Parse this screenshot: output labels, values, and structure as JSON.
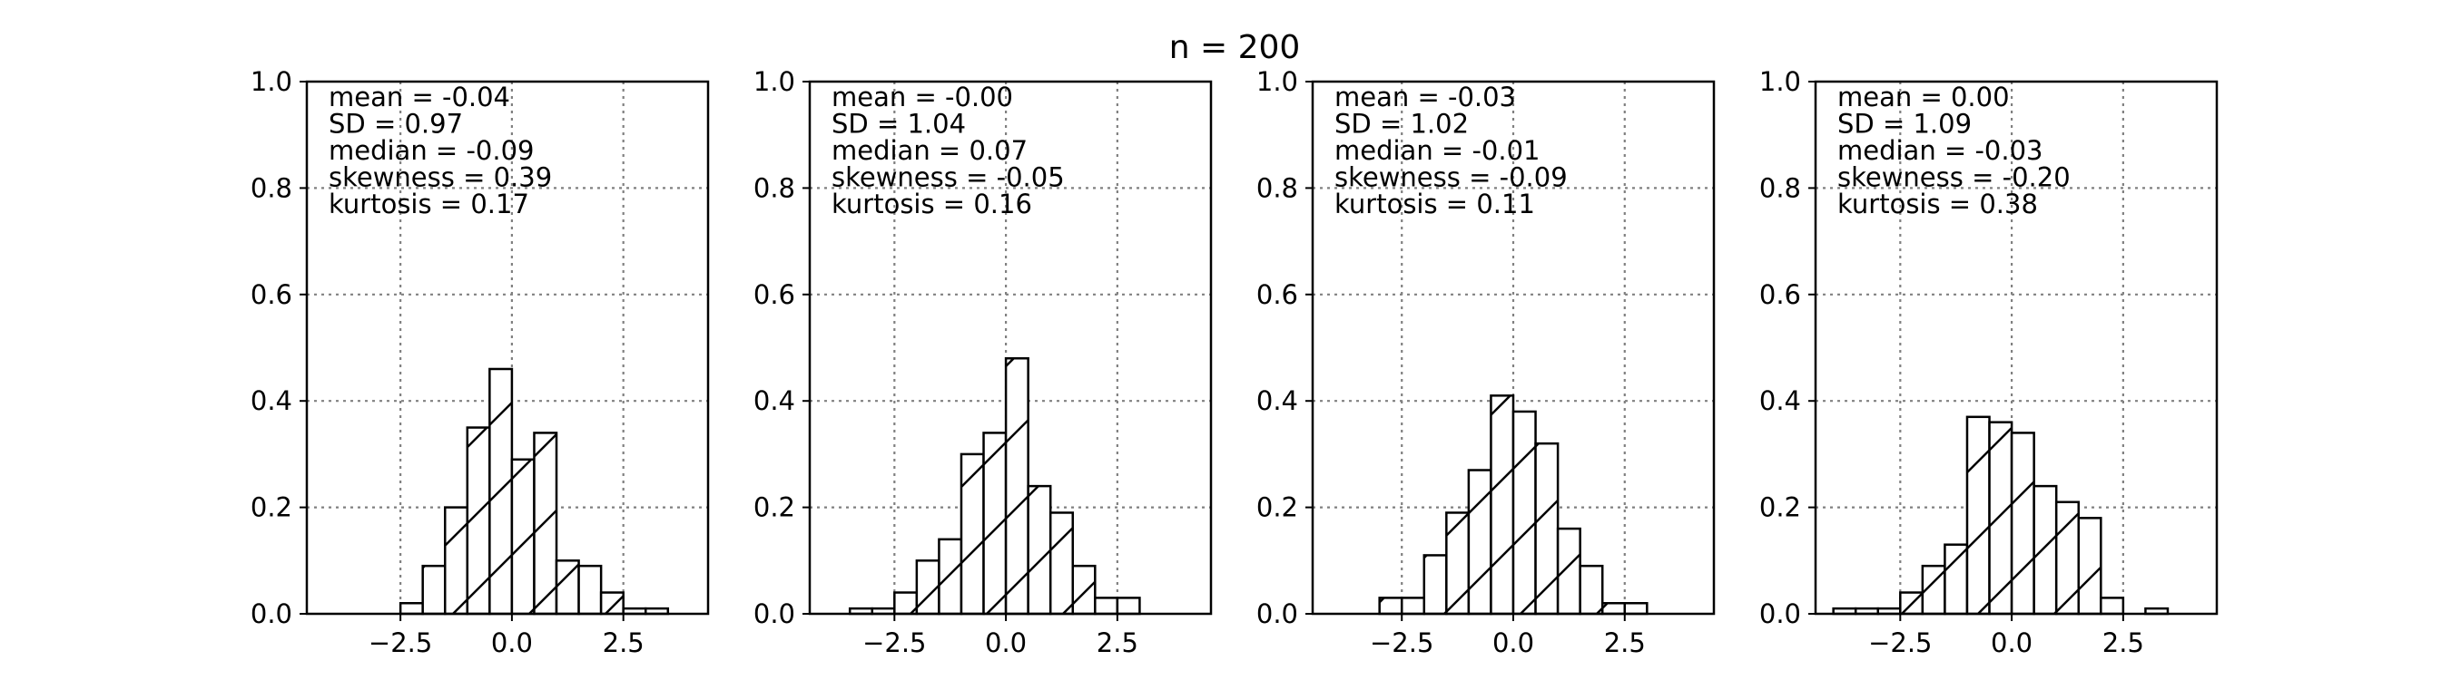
{
  "figure": {
    "suptitle": "n = 200"
  },
  "chart_data": [
    {
      "type": "bar",
      "title": "",
      "xlabel": "",
      "ylabel": "",
      "xlim": [
        -4.6,
        4.4
      ],
      "ylim": [
        0,
        1.0
      ],
      "grid": true,
      "hatch": "diagonal",
      "xticks": [
        -2.5,
        0.0,
        2.5
      ],
      "xtick_labels": [
        "−2.5",
        "0.0",
        "2.5"
      ],
      "yticks": [
        0.0,
        0.2,
        0.4,
        0.6,
        0.8,
        1.0
      ],
      "ytick_labels": [
        "0.0",
        "0.2",
        "0.4",
        "0.6",
        "0.8",
        "1.0"
      ],
      "bin_edges": [
        -2.5,
        -2.0,
        -1.5,
        -1.0,
        -0.5,
        0.0,
        0.5,
        1.0,
        1.5,
        2.0,
        2.5,
        3.0,
        3.5
      ],
      "values": [
        0.02,
        0.09,
        0.2,
        0.35,
        0.46,
        0.29,
        0.34,
        0.1,
        0.09,
        0.04,
        0.01,
        0.01
      ],
      "stats": [
        "mean = -0.04",
        "SD = 0.97",
        "median = -0.09",
        "skewness = 0.39",
        "kurtosis = 0.17"
      ]
    },
    {
      "type": "bar",
      "title": "",
      "xlabel": "",
      "ylabel": "",
      "xlim": [
        -4.4,
        4.6
      ],
      "ylim": [
        0,
        1.0
      ],
      "grid": true,
      "hatch": "diagonal",
      "xticks": [
        -2.5,
        0.0,
        2.5
      ],
      "xtick_labels": [
        "−2.5",
        "0.0",
        "2.5"
      ],
      "yticks": [
        0.0,
        0.2,
        0.4,
        0.6,
        0.8,
        1.0
      ],
      "ytick_labels": [
        "0.0",
        "0.2",
        "0.4",
        "0.6",
        "0.8",
        "1.0"
      ],
      "bin_edges": [
        -3.5,
        -3.0,
        -2.5,
        -2.0,
        -1.5,
        -1.0,
        -0.5,
        0.0,
        0.5,
        1.0,
        1.5,
        2.0,
        2.5,
        3.0
      ],
      "values": [
        0.01,
        0.01,
        0.04,
        0.1,
        0.14,
        0.3,
        0.34,
        0.48,
        0.24,
        0.19,
        0.09,
        0.03,
        0.03
      ],
      "stats": [
        "mean = -0.00",
        "SD = 1.04",
        "median = 0.07",
        "skewness = -0.05",
        "kurtosis = 0.16"
      ]
    },
    {
      "type": "bar",
      "title": "",
      "xlabel": "",
      "ylabel": "",
      "xlim": [
        -4.5,
        4.5
      ],
      "ylim": [
        0,
        1.0
      ],
      "grid": true,
      "hatch": "diagonal",
      "xticks": [
        -2.5,
        0.0,
        2.5
      ],
      "xtick_labels": [
        "−2.5",
        "0.0",
        "2.5"
      ],
      "yticks": [
        0.0,
        0.2,
        0.4,
        0.6,
        0.8,
        1.0
      ],
      "ytick_labels": [
        "0.0",
        "0.2",
        "0.4",
        "0.6",
        "0.8",
        "1.0"
      ],
      "bin_edges": [
        -3.0,
        -2.5,
        -2.0,
        -1.5,
        -1.0,
        -0.5,
        0.0,
        0.5,
        1.0,
        1.5,
        2.0,
        2.5,
        3.0
      ],
      "values": [
        0.03,
        0.03,
        0.11,
        0.19,
        0.27,
        0.41,
        0.38,
        0.32,
        0.16,
        0.09,
        0.02,
        0.02
      ],
      "stats": [
        "mean = -0.03",
        "SD = 1.02",
        "median = -0.01",
        "skewness = -0.09",
        "kurtosis = 0.11"
      ]
    },
    {
      "type": "bar",
      "title": "",
      "xlabel": "",
      "ylabel": "",
      "xlim": [
        -4.4,
        4.6
      ],
      "ylim": [
        0,
        1.0
      ],
      "grid": true,
      "hatch": "diagonal",
      "xticks": [
        -2.5,
        0.0,
        2.5
      ],
      "xtick_labels": [
        "−2.5",
        "0.0",
        "2.5"
      ],
      "yticks": [
        0.0,
        0.2,
        0.4,
        0.6,
        0.8,
        1.0
      ],
      "ytick_labels": [
        "0.0",
        "0.2",
        "0.4",
        "0.6",
        "0.8",
        "1.0"
      ],
      "bin_edges": [
        -4.0,
        -3.5,
        -3.0,
        -2.5,
        -2.0,
        -1.5,
        -1.0,
        -0.5,
        0.0,
        0.5,
        1.0,
        1.5,
        2.0,
        2.5,
        3.0,
        3.5,
        4.0
      ],
      "values": [
        0.01,
        0.01,
        0.01,
        0.04,
        0.09,
        0.13,
        0.37,
        0.36,
        0.34,
        0.24,
        0.21,
        0.18,
        0.03,
        0.0,
        0.01,
        0.0
      ],
      "stats": [
        "mean = 0.00",
        "SD = 1.09",
        "median = -0.03",
        "skewness = -0.20",
        "kurtosis = 0.38"
      ]
    }
  ]
}
